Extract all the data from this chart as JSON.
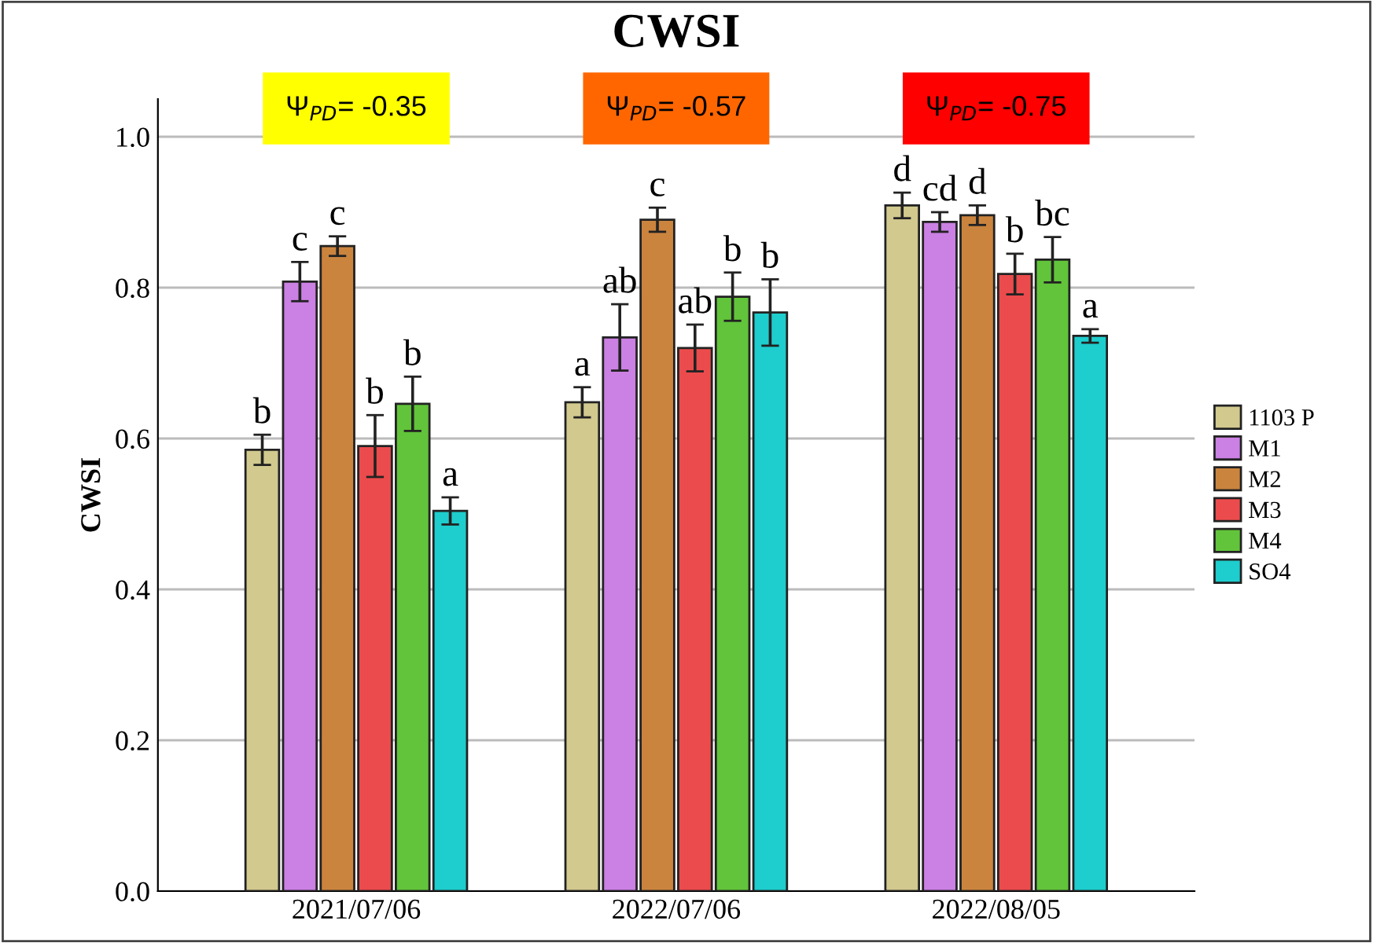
{
  "chart_data": {
    "type": "bar",
    "title": "CWSI",
    "ylabel": "CWSI",
    "categories": [
      "2021/07/06",
      "2022/07/06",
      "2022/08/05"
    ],
    "series": [
      {
        "name": "1103 P",
        "color": "#d2c98f",
        "values": [
          0.585,
          0.648,
          0.909
        ],
        "errors": [
          0.02,
          0.02,
          0.017
        ],
        "value_labels": [
          "b",
          "a",
          "d"
        ]
      },
      {
        "name": "M1",
        "color": "#cb80e3",
        "values": [
          0.808,
          0.734,
          0.887
        ],
        "errors": [
          0.026,
          0.044,
          0.013
        ],
        "value_labels": [
          "c",
          "ab",
          "cd"
        ]
      },
      {
        "name": "M2",
        "color": "#cb843e",
        "values": [
          0.855,
          0.89,
          0.896
        ],
        "errors": [
          0.013,
          0.016,
          0.013
        ],
        "value_labels": [
          "c",
          "c",
          "d"
        ]
      },
      {
        "name": "M3",
        "color": "#eb4b4c",
        "values": [
          0.59,
          0.72,
          0.818
        ],
        "errors": [
          0.041,
          0.031,
          0.027
        ],
        "value_labels": [
          "b",
          "ab",
          "b"
        ]
      },
      {
        "name": "M4",
        "color": "#61c43a",
        "values": [
          0.646,
          0.788,
          0.837
        ],
        "errors": [
          0.036,
          0.032,
          0.03
        ],
        "value_labels": [
          "b",
          "b",
          "bc"
        ]
      },
      {
        "name": "SO4",
        "color": "#1ecdcd",
        "values": [
          0.504,
          0.767,
          0.736
        ],
        "errors": [
          0.018,
          0.044,
          0.009
        ],
        "value_labels": [
          "a",
          "b",
          "a"
        ]
      }
    ],
    "ylim": [
      0,
      1.05
    ],
    "yticks": [
      {
        "value": 0,
        "label": "0.0"
      },
      {
        "value": 0.2,
        "label": "0.2"
      },
      {
        "value": 0.4,
        "label": "0.4"
      },
      {
        "value": 0.6,
        "label": "0.6"
      },
      {
        "value": 0.8,
        "label": "0.8"
      },
      {
        "value": 1,
        "label": "1.0"
      }
    ],
    "grid": "y",
    "legend": "right",
    "annotations": [
      "Ψ$_{PD}$= -0.35",
      "Ψ$_{PD}$= -0.57",
      "Ψ$_{PD}$= -0.75"
    ]
  }
}
